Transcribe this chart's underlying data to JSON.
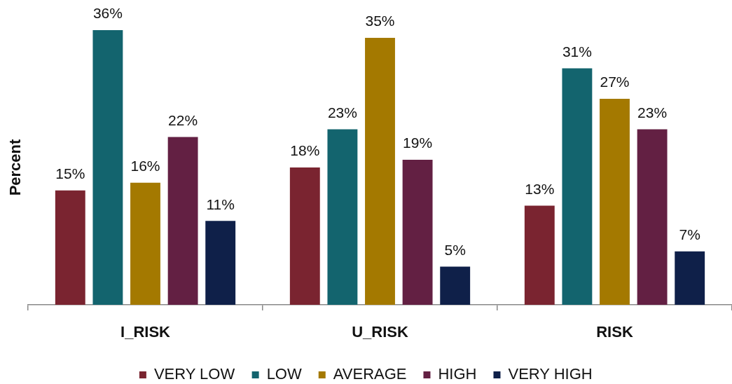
{
  "chart_data": {
    "type": "bar",
    "ylabel": "Percent",
    "categories": [
      "I_RISK",
      "U_RISK",
      "RISK"
    ],
    "series": [
      {
        "name": "VERY LOW",
        "color": "#7a2430",
        "values": [
          15,
          18,
          13
        ],
        "value_labels": [
          "15%",
          "18%",
          "13%"
        ]
      },
      {
        "name": "LOW",
        "color": "#13646e",
        "values": [
          36,
          23,
          31
        ],
        "value_labels": [
          "36%",
          "23%",
          "31%"
        ]
      },
      {
        "name": "AVERAGE",
        "color": "#a47900",
        "values": [
          16,
          35,
          27
        ],
        "value_labels": [
          "16%",
          "35%",
          "27%"
        ]
      },
      {
        "name": "HIGH",
        "color": "#632043",
        "values": [
          22,
          19,
          23
        ],
        "value_labels": [
          "22%",
          "19%",
          "23%"
        ]
      },
      {
        "name": "VERY HIGH",
        "color": "#0f2049",
        "values": [
          11,
          5,
          7
        ],
        "value_labels": [
          "11%",
          "5%",
          "7%"
        ]
      }
    ],
    "legend": "bottom"
  }
}
